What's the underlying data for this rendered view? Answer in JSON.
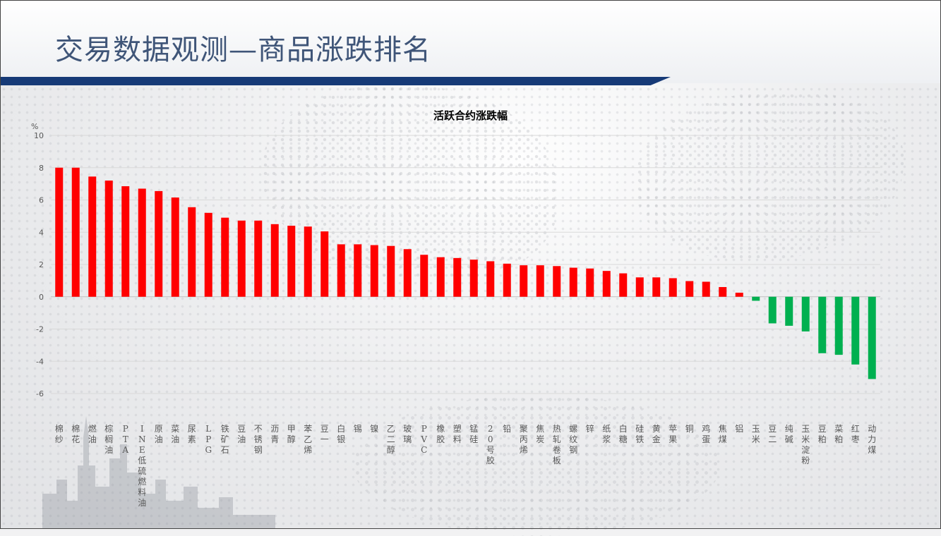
{
  "header": {
    "title": "交易数据观测—商品涨跌排名"
  },
  "colors": {
    "positive": "#ff0000",
    "negative": "#00b050",
    "title": "#3f5578",
    "stripe": "#163a77"
  },
  "chart_data": {
    "type": "bar",
    "title": "活跃合约涨跌幅",
    "ylabel": "%",
    "ylim": [
      -6,
      10
    ],
    "yticks": [
      10,
      8,
      6,
      4,
      2,
      0,
      -2,
      -4,
      -6
    ],
    "grid": true,
    "categories": [
      "棉纱",
      "棉花",
      "燃油",
      "棕榈油",
      "PTA",
      "INE低硫燃料油",
      "原油",
      "菜油",
      "尿素",
      "LPG",
      "铁矿石",
      "豆油",
      "不锈钢",
      "沥青",
      "甲醇",
      "苯乙烯",
      "豆一",
      "白银",
      "锡",
      "镍",
      "乙二醇",
      "玻璃",
      "PVC",
      "橡胶",
      "塑料",
      "锰硅",
      "20号胶",
      "铅",
      "聚丙烯",
      "焦炭",
      "热轧卷板",
      "螺纹钢",
      "锌",
      "纸浆",
      "白糖",
      "硅铁",
      "黄金",
      "苹果",
      "铜",
      "鸡蛋",
      "焦煤",
      "铝",
      "玉米",
      "豆二",
      "纯碱",
      "玉米淀粉",
      "豆粕",
      "菜粕",
      "红枣",
      "动力煤"
    ],
    "values": [
      8.0,
      8.0,
      7.45,
      7.2,
      6.85,
      6.7,
      6.55,
      6.15,
      5.55,
      5.2,
      4.9,
      4.72,
      4.72,
      4.5,
      4.4,
      4.35,
      4.05,
      3.25,
      3.25,
      3.2,
      3.15,
      2.95,
      2.6,
      2.45,
      2.4,
      2.3,
      2.2,
      2.05,
      1.95,
      1.95,
      1.9,
      1.8,
      1.75,
      1.6,
      1.45,
      1.2,
      1.2,
      1.15,
      0.97,
      0.93,
      0.6,
      0.25,
      -0.25,
      -1.65,
      -1.8,
      -2.15,
      -3.5,
      -3.6,
      -4.2,
      -5.1
    ]
  }
}
